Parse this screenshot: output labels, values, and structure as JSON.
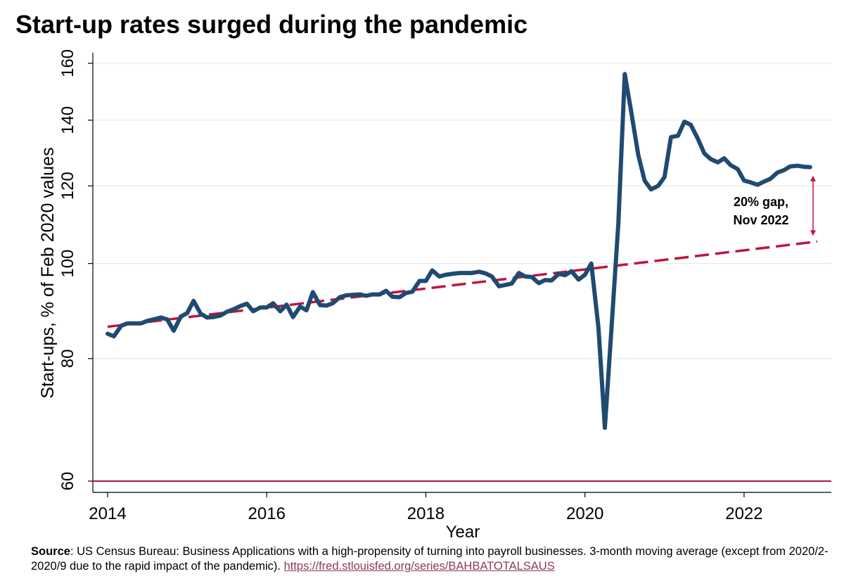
{
  "title": "Start-up rates surged during the pandemic",
  "source": {
    "label": "Source",
    "text": ": US Census Bureau: Business Applications with a high-propensity of turning into payroll businesses. 3-month moving average (except from 2020/2-2020/9 due to the rapid impact of the pandemic). ",
    "link": "https://fred.stlouisfed.org/series/BAHBATOTALSAUS"
  },
  "colors": {
    "series": "#1f4a72",
    "trend": "#c0143c",
    "baseline": "#b3143c",
    "arrow": "#c0143c"
  },
  "annotation": {
    "line1": "20% gap,",
    "line2": "Nov 2022"
  },
  "chart_data": {
    "type": "line",
    "xlabel": "Year",
    "ylabel": "Start-ups, % of Feb 2020 values",
    "y_scale": "log",
    "ylim": [
      60,
      160
    ],
    "xlim": [
      2014,
      2022.92
    ],
    "yticks": [
      60,
      80,
      100,
      120,
      140,
      160
    ],
    "xticks": [
      2014,
      2016,
      2018,
      2020,
      2022
    ],
    "grid": "horizontal",
    "series": [
      {
        "values": [
          [
            2014.0,
            84.8
          ],
          [
            2014.08,
            84.3
          ],
          [
            2014.17,
            86.4
          ],
          [
            2014.25,
            86.9
          ],
          [
            2014.33,
            86.9
          ],
          [
            2014.42,
            86.9
          ],
          [
            2014.5,
            87.4
          ],
          [
            2014.58,
            87.7
          ],
          [
            2014.67,
            88.1
          ],
          [
            2014.75,
            87.7
          ],
          [
            2014.83,
            85.4
          ],
          [
            2014.92,
            88.3
          ],
          [
            2015.0,
            89.0
          ],
          [
            2015.08,
            91.6
          ],
          [
            2015.17,
            88.9
          ],
          [
            2015.25,
            88.1
          ],
          [
            2015.33,
            88.2
          ],
          [
            2015.42,
            88.5
          ],
          [
            2015.5,
            89.3
          ],
          [
            2015.58,
            89.8
          ],
          [
            2015.67,
            90.5
          ],
          [
            2015.75,
            91.0
          ],
          [
            2015.83,
            89.4
          ],
          [
            2015.92,
            90.2
          ],
          [
            2016.0,
            90.2
          ],
          [
            2016.08,
            91.1
          ],
          [
            2016.17,
            89.4
          ],
          [
            2016.25,
            90.8
          ],
          [
            2016.33,
            88.2
          ],
          [
            2016.42,
            90.4
          ],
          [
            2016.5,
            89.6
          ],
          [
            2016.58,
            93.5
          ],
          [
            2016.67,
            90.7
          ],
          [
            2016.75,
            90.6
          ],
          [
            2016.83,
            91.1
          ],
          [
            2016.92,
            92.4
          ],
          [
            2017.0,
            92.8
          ],
          [
            2017.08,
            92.9
          ],
          [
            2017.17,
            93.0
          ],
          [
            2017.25,
            92.7
          ],
          [
            2017.33,
            93.0
          ],
          [
            2017.42,
            93.0
          ],
          [
            2017.5,
            93.8
          ],
          [
            2017.58,
            92.5
          ],
          [
            2017.67,
            92.4
          ],
          [
            2017.75,
            93.3
          ],
          [
            2017.83,
            93.6
          ],
          [
            2017.92,
            96.0
          ],
          [
            2018.0,
            96.0
          ],
          [
            2018.08,
            98.4
          ],
          [
            2018.17,
            97.0
          ],
          [
            2018.25,
            97.4
          ],
          [
            2018.33,
            97.6
          ],
          [
            2018.42,
            97.8
          ],
          [
            2018.5,
            97.8
          ],
          [
            2018.58,
            97.8
          ],
          [
            2018.67,
            98.1
          ],
          [
            2018.75,
            97.7
          ],
          [
            2018.83,
            97.0
          ],
          [
            2018.92,
            94.8
          ],
          [
            2019.0,
            95.1
          ],
          [
            2019.08,
            95.4
          ],
          [
            2019.17,
            97.8
          ],
          [
            2019.25,
            97.0
          ],
          [
            2019.33,
            96.9
          ],
          [
            2019.42,
            95.5
          ],
          [
            2019.5,
            96.2
          ],
          [
            2019.58,
            96.1
          ],
          [
            2019.67,
            97.6
          ],
          [
            2019.75,
            97.3
          ],
          [
            2019.83,
            98.2
          ],
          [
            2019.92,
            96.3
          ],
          [
            2020.0,
            97.4
          ],
          [
            2020.08,
            100.0
          ],
          [
            2020.17,
            86.0
          ],
          [
            2020.25,
            68.0
          ],
          [
            2020.33,
            85.0
          ],
          [
            2020.42,
            110.0
          ],
          [
            2020.5,
            156.0
          ],
          [
            2020.58,
            143.0
          ],
          [
            2020.67,
            129.0
          ],
          [
            2020.75,
            121.5
          ],
          [
            2020.83,
            119.0
          ],
          [
            2020.92,
            120.0
          ],
          [
            2021.0,
            122.5
          ],
          [
            2021.08,
            134.5
          ],
          [
            2021.17,
            135.0
          ],
          [
            2021.25,
            139.5
          ],
          [
            2021.33,
            138.5
          ],
          [
            2021.42,
            134.0
          ],
          [
            2021.5,
            129.5
          ],
          [
            2021.58,
            127.8
          ],
          [
            2021.67,
            126.8
          ],
          [
            2021.75,
            128.0
          ],
          [
            2021.83,
            126.0
          ],
          [
            2021.92,
            124.8
          ],
          [
            2022.0,
            121.5
          ],
          [
            2022.08,
            121.0
          ],
          [
            2022.17,
            120.3
          ],
          [
            2022.25,
            121.2
          ],
          [
            2022.33,
            122.0
          ],
          [
            2022.42,
            123.8
          ],
          [
            2022.5,
            124.5
          ],
          [
            2022.58,
            125.6
          ],
          [
            2022.67,
            125.8
          ],
          [
            2022.75,
            125.5
          ],
          [
            2022.83,
            125.4
          ]
        ]
      },
      {
        "style": "dashed",
        "values": [
          [
            2014.0,
            86.2
          ],
          [
            2022.92,
            105.3
          ]
        ]
      },
      {
        "style": "solid",
        "values": [
          [
            2014.0,
            60
          ],
          [
            2022.92,
            60
          ]
        ]
      }
    ],
    "annotations": [
      {
        "text": "20% gap, Nov 2022",
        "x": 2022.92,
        "y_from": 105.3,
        "y_to": 122.5
      }
    ]
  }
}
